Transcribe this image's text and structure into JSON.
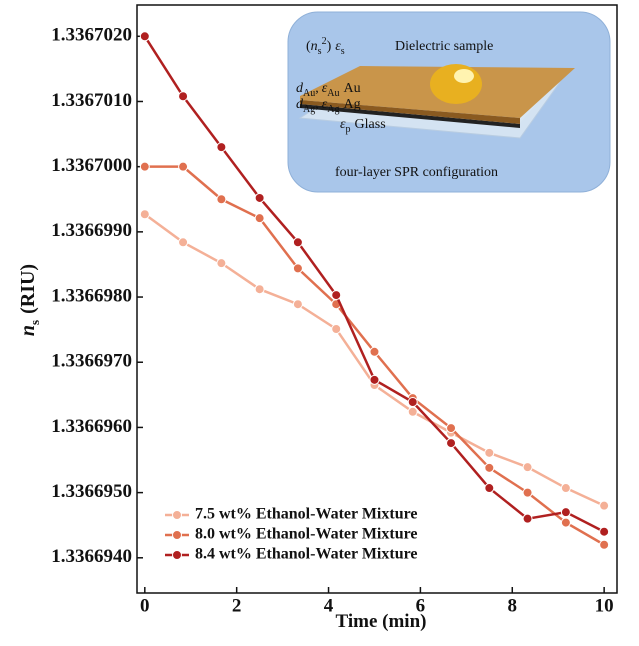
{
  "chart_data": {
    "type": "line",
    "xlabel": "Time (min)",
    "ylabel_symbol": [
      "n",
      "s"
    ],
    "ylabel": "(RIU)",
    "x": [
      0,
      0.833,
      1.667,
      2.5,
      3.333,
      4.167,
      5,
      5.833,
      6.667,
      7.5,
      8.333,
      9.167,
      10
    ],
    "series": [
      {
        "name": "7.5 wt% Ethanol-Water Mixture",
        "color": "#f4b097",
        "values": [
          1.33669927,
          1.33669884,
          1.33669852,
          1.33669812,
          1.33669789,
          1.33669751,
          1.33669665,
          1.33669624,
          1.33669592,
          1.33669561,
          1.33669539,
          1.33669507,
          1.3366948
        ]
      },
      {
        "name": "8.0 wt% Ethanol-Water Mixture",
        "color": "#e0704f",
        "values": [
          1.3367,
          1.3367,
          1.3366995,
          1.33669921,
          1.33669844,
          1.33669789,
          1.33669716,
          1.33669645,
          1.33669599,
          1.33669538,
          1.336695,
          1.33669454,
          1.3366942
        ]
      },
      {
        "name": "8.4 wt% Ethanol-Water Mixture",
        "color": "#b02020",
        "values": [
          1.336702,
          1.33670108,
          1.3367003,
          1.33669952,
          1.33669884,
          1.33669803,
          1.33669673,
          1.33669639,
          1.33669576,
          1.33669507,
          1.3366946,
          1.3366947,
          1.3366944
        ]
      }
    ],
    "xlim": [
      -0.17,
      10.28
    ],
    "xticks": [
      0,
      2,
      4,
      6,
      8,
      10
    ],
    "ylim": [
      1.33669346,
      1.33670248
    ],
    "yticks": [
      {
        "value": 1.336694,
        "label": "1.3366940"
      },
      {
        "value": 1.336695,
        "label": "1.3366950"
      },
      {
        "value": 1.336696,
        "label": "1.3366960"
      },
      {
        "value": 1.336697,
        "label": "1.3366970"
      },
      {
        "value": 1.336698,
        "label": "1.3366980"
      },
      {
        "value": 1.336699,
        "label": "1.3366990"
      },
      {
        "value": 1.3367,
        "label": "1.3367000"
      },
      {
        "value": 1.336701,
        "label": "1.3367010"
      },
      {
        "value": 1.336702,
        "label": "1.3367020"
      }
    ],
    "legend": "lower left",
    "inset": {
      "sample_symbols": [
        "(",
        "n",
        "s",
        "2",
        ")",
        "ε",
        "s"
      ],
      "sample": "Dielectric sample",
      "au": [
        "d",
        "Au",
        ",",
        "ε",
        "Au",
        "Au"
      ],
      "ag": [
        "d",
        "Ag",
        ",",
        "ε",
        "Ag",
        "Ag"
      ],
      "glass": [
        "ε",
        "p",
        "Glass"
      ],
      "caption": "four-layer SPR configuration"
    }
  }
}
